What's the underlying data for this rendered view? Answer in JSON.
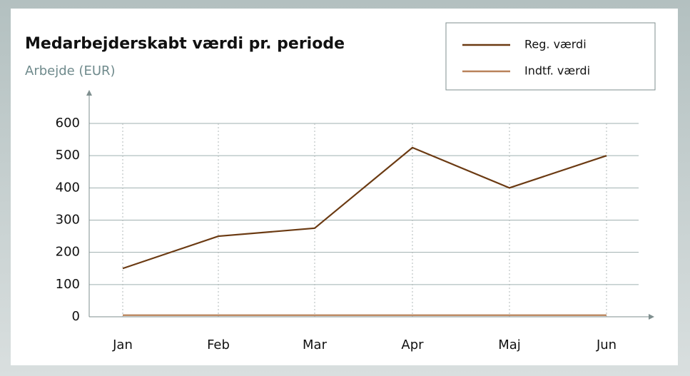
{
  "chart_data": {
    "type": "line",
    "title": "Medarbejderskabt værdi pr. periode",
    "subtitle": "Arbejde (EUR)",
    "categories": [
      "Jan",
      "Feb",
      "Mar",
      "Apr",
      "Maj",
      "Jun"
    ],
    "series": [
      {
        "name": "Reg. værdi",
        "color": "#6b3a12",
        "values": [
          150,
          250,
          275,
          525,
          400,
          500
        ]
      },
      {
        "name": "Indtf. værdi",
        "color": "#b9825a",
        "values": [
          5,
          5,
          5,
          5,
          5,
          5
        ]
      }
    ],
    "ylim": [
      0,
      600
    ],
    "yticks": [
      0,
      100,
      200,
      300,
      400,
      500,
      600
    ],
    "grid": true,
    "legend": "top-right"
  }
}
